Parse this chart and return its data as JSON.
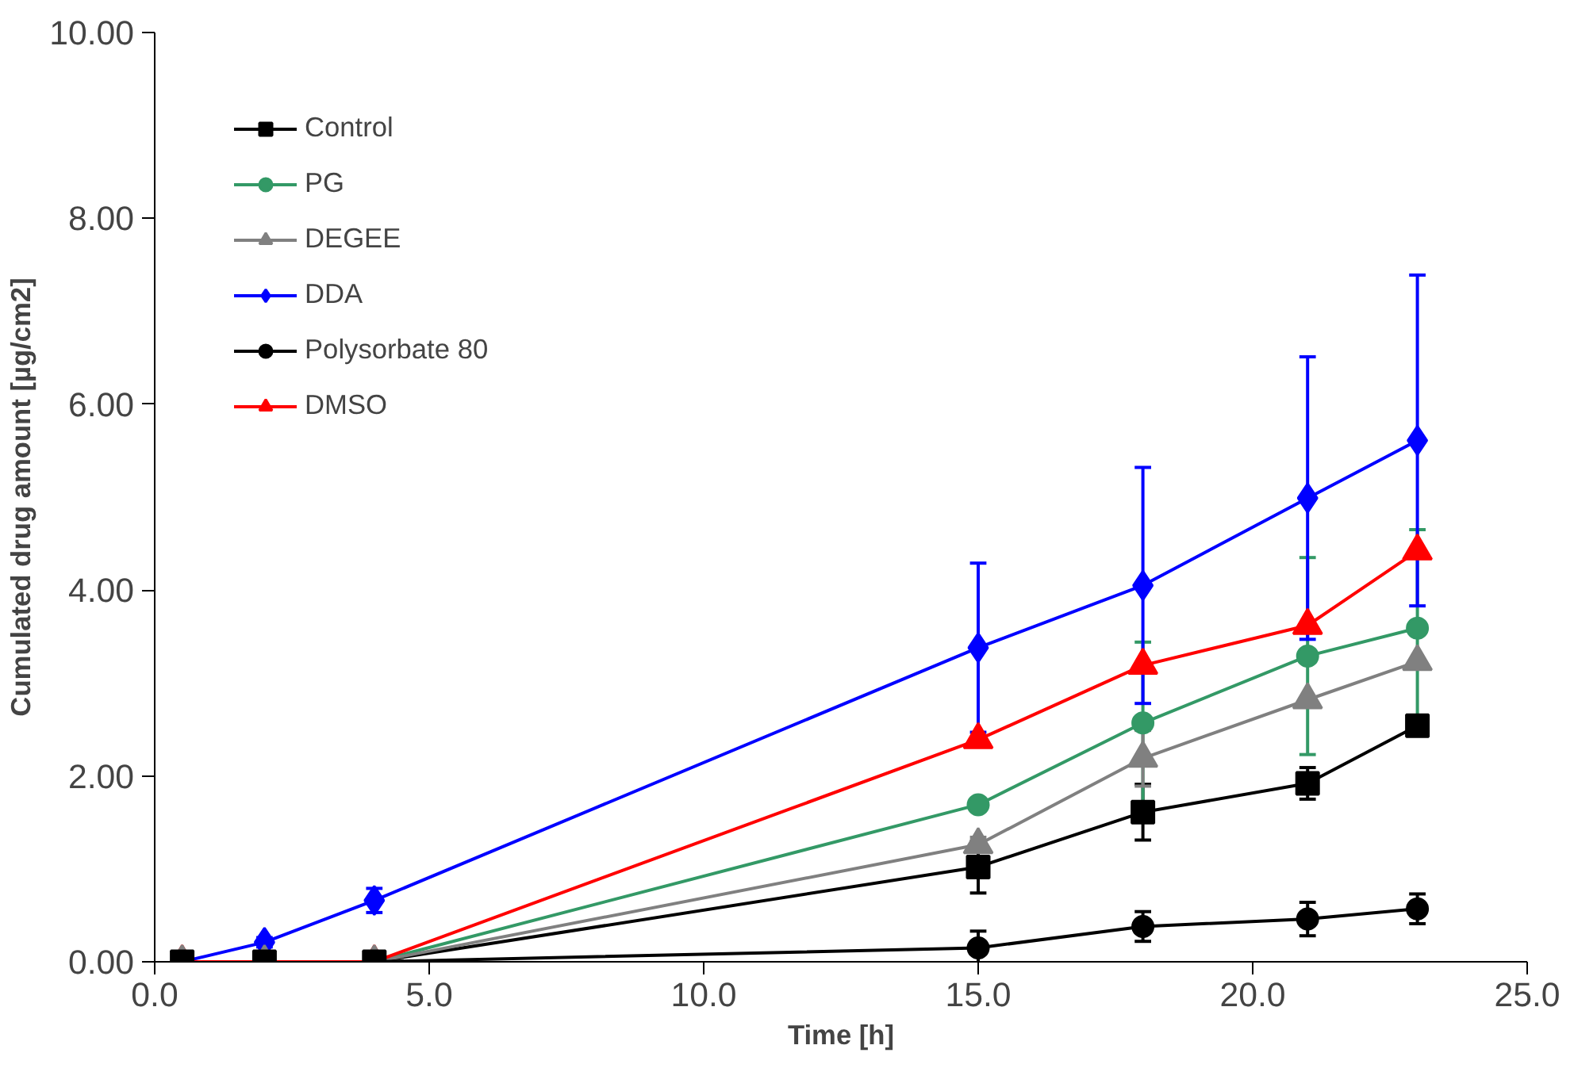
{
  "chart_data": {
    "type": "line",
    "xlabel": "Time [h]",
    "ylabel": "Cumulated drug amount [µg/cm2]",
    "x": [
      0.5,
      2,
      4,
      15,
      18,
      21,
      23
    ],
    "xlim": [
      0,
      25
    ],
    "xticks": [
      {
        "value": 0,
        "label": "0.0"
      },
      {
        "value": 5,
        "label": "5.0"
      },
      {
        "value": 10,
        "label": "10.0"
      },
      {
        "value": 15,
        "label": "15.0"
      },
      {
        "value": 20,
        "label": "20.0"
      },
      {
        "value": 25,
        "label": "25.0"
      }
    ],
    "ylim": [
      0,
      10
    ],
    "yticks": [
      {
        "value": 0,
        "label": "0.00"
      },
      {
        "value": 2,
        "label": "2.00"
      },
      {
        "value": 4,
        "label": "4.00"
      },
      {
        "value": 6,
        "label": "6.00"
      },
      {
        "value": 8,
        "label": "8.00"
      },
      {
        "value": 10,
        "label": "10.00"
      }
    ],
    "grid": false,
    "legend": "top left",
    "series": [
      {
        "name": "Control",
        "color": "#000000",
        "marker": "square",
        "values": [
          0,
          0,
          0,
          1.02,
          1.61,
          1.92,
          2.54
        ],
        "errors": [
          null,
          null,
          null,
          0.28,
          0.3,
          0.17,
          null
        ]
      },
      {
        "name": "PG",
        "color": "#339966",
        "marker": "circle",
        "values": [
          0,
          0,
          0,
          1.69,
          2.57,
          3.29,
          3.59
        ],
        "errors": [
          null,
          null,
          null,
          null,
          0.87,
          1.06,
          1.06
        ]
      },
      {
        "name": "DEGEE",
        "color": "#808080",
        "marker": "triangle",
        "values": [
          0,
          0,
          0,
          1.26,
          2.19,
          2.82,
          3.23
        ],
        "errors": [
          null,
          null,
          null,
          0.08,
          0.3,
          null,
          null
        ]
      },
      {
        "name": "DDA",
        "color": "#0000ff",
        "marker": "diamond",
        "values": [
          0,
          0.21,
          0.66,
          3.38,
          4.05,
          4.99,
          5.61
        ],
        "errors": [
          null,
          0.05,
          0.13,
          0.91,
          1.27,
          1.52,
          1.78
        ]
      },
      {
        "name": "Polysorbate 80",
        "color": "#000000",
        "marker": "circle",
        "values": [
          0,
          0,
          0,
          0.15,
          0.38,
          0.46,
          0.57
        ],
        "errors": [
          null,
          null,
          null,
          0.18,
          0.16,
          0.18,
          0.16
        ]
      },
      {
        "name": "DMSO",
        "color": "#ff0000",
        "marker": "triangle",
        "values": [
          0,
          0,
          0,
          2.39,
          3.19,
          3.62,
          4.42
        ]
      }
    ]
  }
}
